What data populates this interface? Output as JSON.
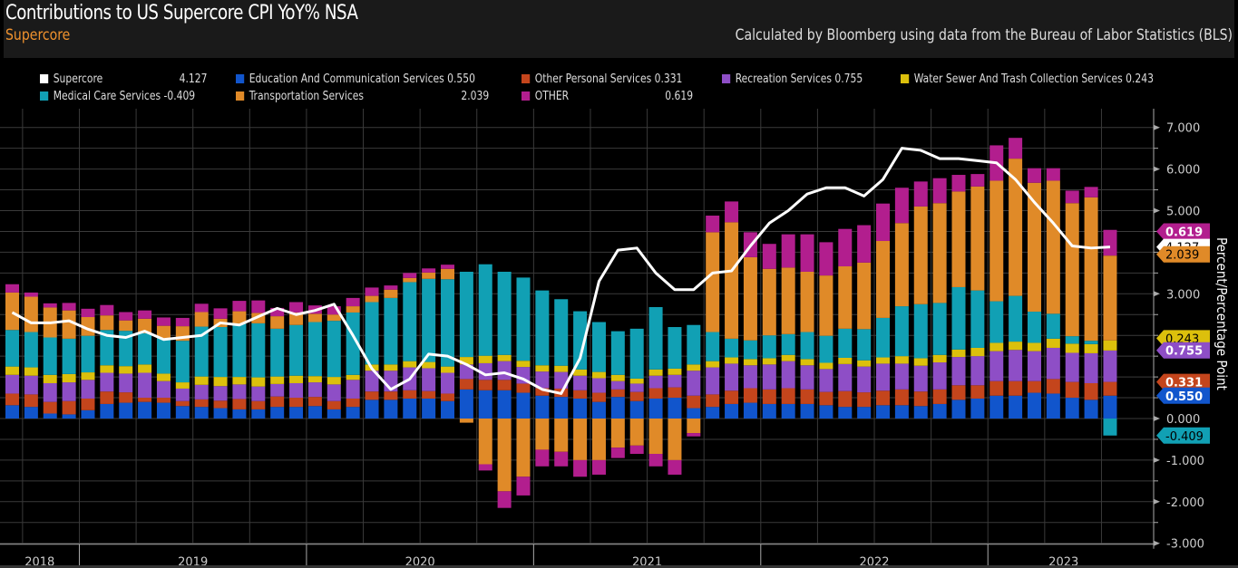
{
  "header": {
    "title": "Contributions to US Supercore CPI YoY% NSA",
    "subtitle": "Supercore",
    "source": "Calculated by Bloomberg using data from the Bureau of Labor Statistics (BLS)"
  },
  "chart_data": {
    "type": "bar",
    "stacked": true,
    "title": "Contributions to US Supercore CPI YoY% NSA",
    "subtitle": "Supercore",
    "ylabel": "Percent/Percentage Point",
    "ylim": [
      -3,
      7.5
    ],
    "yticks": [
      "7.000",
      "6.000",
      "5.000",
      "3.000",
      "0.000",
      "-1.000",
      "-2.000",
      "-3.000"
    ],
    "ytick_values": [
      7,
      6,
      5,
      3,
      0,
      -1,
      -2,
      -3
    ],
    "grid": true,
    "legend_position": "top",
    "x_year_labels": [
      "2018",
      "2019",
      "2020",
      "2021",
      "2022",
      "2023"
    ],
    "x_start": "2018-09",
    "frequency": "monthly",
    "colors": {
      "Supercore": "#ffffff",
      "Education And Communication Services": "#1155cc",
      "Other Personal Services": "#c4451c",
      "Recreation Services": "#8e4ec6",
      "Water Sewer And Trash Collection Services": "#dcc00c",
      "Medical Care Services": "#11a0b4",
      "Transportation Services": "#e08a28",
      "OTHER": "#b21e8e"
    },
    "legend": [
      {
        "name": "Supercore",
        "last": "4.127"
      },
      {
        "name": "Education And Communication Services",
        "last": "0.550"
      },
      {
        "name": "Other Personal Services",
        "last": "0.331"
      },
      {
        "name": "Recreation Services",
        "last": "0.755"
      },
      {
        "name": "Water Sewer And Trash Collection Services",
        "last": "0.243"
      },
      {
        "name": "Medical Care Services",
        "last": "-0.409"
      },
      {
        "name": "Transportation Services",
        "last": "2.039"
      },
      {
        "name": "OTHER",
        "last": "0.619"
      }
    ],
    "series": [
      {
        "name": "Education And Communication Services",
        "values": [
          0.32,
          0.28,
          0.12,
          0.1,
          0.2,
          0.35,
          0.38,
          0.4,
          0.38,
          0.3,
          0.28,
          0.25,
          0.22,
          0.22,
          0.28,
          0.28,
          0.3,
          0.22,
          0.28,
          0.45,
          0.45,
          0.48,
          0.48,
          0.42,
          0.7,
          0.68,
          0.68,
          0.62,
          0.55,
          0.52,
          0.48,
          0.4,
          0.52,
          0.42,
          0.48,
          0.5,
          0.25,
          0.28,
          0.35,
          0.38,
          0.35,
          0.35,
          0.35,
          0.32,
          0.28,
          0.28,
          0.32,
          0.32,
          0.3,
          0.35,
          0.45,
          0.48,
          0.55,
          0.55,
          0.62,
          0.6,
          0.5,
          0.45,
          0.55
        ]
      },
      {
        "name": "Other Personal Services",
        "values": [
          0.28,
          0.3,
          0.28,
          0.32,
          0.28,
          0.3,
          0.25,
          0.1,
          0.12,
          0.12,
          0.18,
          0.18,
          0.25,
          0.2,
          0.25,
          0.22,
          0.22,
          0.2,
          0.2,
          0.2,
          0.2,
          0.2,
          0.18,
          0.18,
          0.25,
          0.25,
          0.25,
          0.22,
          0.18,
          0.2,
          0.2,
          0.22,
          0.18,
          0.22,
          0.25,
          0.25,
          0.3,
          0.3,
          0.32,
          0.35,
          0.35,
          0.38,
          0.35,
          0.32,
          0.38,
          0.35,
          0.35,
          0.38,
          0.35,
          0.35,
          0.35,
          0.32,
          0.35,
          0.35,
          0.28,
          0.35,
          0.38,
          0.4,
          0.331
        ]
      },
      {
        "name": "Recreation Services",
        "values": [
          0.45,
          0.45,
          0.45,
          0.45,
          0.45,
          0.45,
          0.45,
          0.6,
          0.4,
          0.3,
          0.35,
          0.35,
          0.35,
          0.35,
          0.3,
          0.35,
          0.35,
          0.4,
          0.45,
          0.5,
          0.5,
          0.55,
          0.55,
          0.5,
          0.35,
          0.4,
          0.45,
          0.4,
          0.4,
          0.4,
          0.35,
          0.35,
          0.2,
          0.2,
          0.3,
          0.3,
          0.6,
          0.65,
          0.65,
          0.55,
          0.6,
          0.65,
          0.58,
          0.55,
          0.65,
          0.62,
          0.65,
          0.62,
          0.62,
          0.65,
          0.68,
          0.7,
          0.72,
          0.75,
          0.72,
          0.75,
          0.7,
          0.72,
          0.755
        ]
      },
      {
        "name": "Water Sewer And Trash Collection Services",
        "values": [
          0.2,
          0.2,
          0.2,
          0.2,
          0.18,
          0.18,
          0.18,
          0.2,
          0.18,
          0.15,
          0.2,
          0.22,
          0.18,
          0.22,
          0.18,
          0.18,
          0.15,
          0.18,
          0.12,
          0.15,
          0.15,
          0.15,
          0.15,
          0.15,
          0.18,
          0.18,
          0.15,
          0.15,
          0.15,
          0.15,
          0.15,
          0.15,
          0.15,
          0.12,
          0.15,
          0.15,
          0.15,
          0.15,
          0.15,
          0.15,
          0.15,
          0.15,
          0.15,
          0.15,
          0.15,
          0.15,
          0.15,
          0.18,
          0.18,
          0.18,
          0.18,
          0.2,
          0.2,
          0.2,
          0.2,
          0.22,
          0.22,
          0.22,
          0.243
        ]
      },
      {
        "name": "Medical Care Services",
        "values": [
          0.88,
          0.85,
          0.9,
          0.85,
          0.88,
          0.85,
          0.85,
          0.75,
          0.85,
          1.0,
          1.2,
          1.2,
          1.28,
          1.3,
          1.15,
          1.22,
          1.3,
          1.35,
          1.5,
          1.5,
          1.6,
          1.9,
          2.0,
          2.1,
          2.05,
          2.2,
          2.0,
          2.0,
          1.8,
          1.6,
          1.4,
          1.2,
          1.05,
          1.2,
          1.5,
          1.0,
          0.95,
          0.7,
          0.45,
          0.45,
          0.55,
          0.5,
          0.65,
          0.65,
          0.7,
          0.75,
          0.95,
          1.2,
          1.3,
          1.25,
          1.5,
          1.38,
          1.0,
          1.1,
          0.75,
          0.6,
          0.18,
          0.08,
          -0.409
        ]
      },
      {
        "name": "Transportation Services",
        "values": [
          0.9,
          0.85,
          0.72,
          0.68,
          0.45,
          0.35,
          0.25,
          0.35,
          0.3,
          0.35,
          0.35,
          0.2,
          0.3,
          0.25,
          0.3,
          0.3,
          0.2,
          0.15,
          0.15,
          0.15,
          0.2,
          0.1,
          0.15,
          0.25,
          -0.1,
          -1.1,
          -1.75,
          -1.4,
          -0.75,
          -0.8,
          -1.0,
          -1.0,
          -0.7,
          -0.65,
          -0.85,
          -1.0,
          -0.35,
          2.4,
          2.8,
          2.0,
          1.6,
          1.6,
          1.45,
          1.45,
          1.5,
          1.6,
          1.85,
          2.0,
          2.35,
          2.4,
          2.3,
          2.5,
          2.9,
          3.3,
          3.1,
          3.2,
          3.2,
          3.45,
          2.039
        ]
      },
      {
        "name": "OTHER",
        "values": [
          0.2,
          0.1,
          0.1,
          0.18,
          0.2,
          0.25,
          0.2,
          0.2,
          0.2,
          0.2,
          0.2,
          0.25,
          0.25,
          0.3,
          0.2,
          0.25,
          0.2,
          0.2,
          0.2,
          0.2,
          0.1,
          0.12,
          0.1,
          0.1,
          0.0,
          -0.15,
          -0.4,
          -0.45,
          -0.4,
          -0.35,
          -0.4,
          -0.35,
          -0.25,
          -0.2,
          -0.3,
          -0.35,
          -0.08,
          0.4,
          0.5,
          0.6,
          0.6,
          0.8,
          0.9,
          0.8,
          0.9,
          0.9,
          0.9,
          0.85,
          0.6,
          0.6,
          0.4,
          0.3,
          0.85,
          0.5,
          0.35,
          0.3,
          0.3,
          0.25,
          0.619
        ]
      }
    ],
    "line": {
      "name": "Supercore",
      "values": [
        2.55,
        2.3,
        2.3,
        2.35,
        2.15,
        2.0,
        1.95,
        2.1,
        1.9,
        1.95,
        2.0,
        2.3,
        2.25,
        2.45,
        2.65,
        2.5,
        2.6,
        2.75,
        2.0,
        1.2,
        0.7,
        0.95,
        1.55,
        1.5,
        1.3,
        1.05,
        1.1,
        0.95,
        0.7,
        0.6,
        1.45,
        3.3,
        4.05,
        4.1,
        3.5,
        3.1,
        3.1,
        3.5,
        3.55,
        4.15,
        4.7,
        5.0,
        5.4,
        5.55,
        5.55,
        5.35,
        5.75,
        6.5,
        6.45,
        6.25,
        6.25,
        6.2,
        6.15,
        5.75,
        5.2,
        4.7,
        4.15,
        4.1,
        4.127
      ]
    }
  },
  "axis_badges": [
    {
      "name": "OTHER",
      "label": "0.619"
    },
    {
      "name": "Supercore",
      "label": "4.127"
    },
    {
      "name": "Transportation Services",
      "label": "2.039"
    },
    {
      "name": "Water Sewer And Trash Collection Services",
      "label": "0.243"
    },
    {
      "name": "Recreation Services",
      "label": "0.755"
    },
    {
      "name": "Other Personal Services",
      "label": "0.331"
    },
    {
      "name": "Education And Communication Services",
      "label": "0.550"
    },
    {
      "name": "Medical Care Services",
      "label": "-0.409"
    }
  ]
}
